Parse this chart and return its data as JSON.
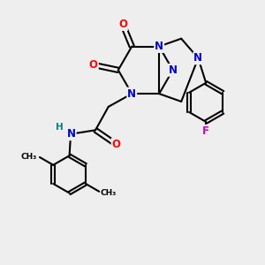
{
  "background_color": "#eeeeee",
  "atom_colors": {
    "C": "#000000",
    "N": "#0000cc",
    "O": "#ff0000",
    "F": "#cc00cc",
    "H": "#008080"
  },
  "bond_color": "#000000",
  "bond_width": 1.5,
  "figsize": [
    3.0,
    3.0
  ],
  "dpi": 100
}
